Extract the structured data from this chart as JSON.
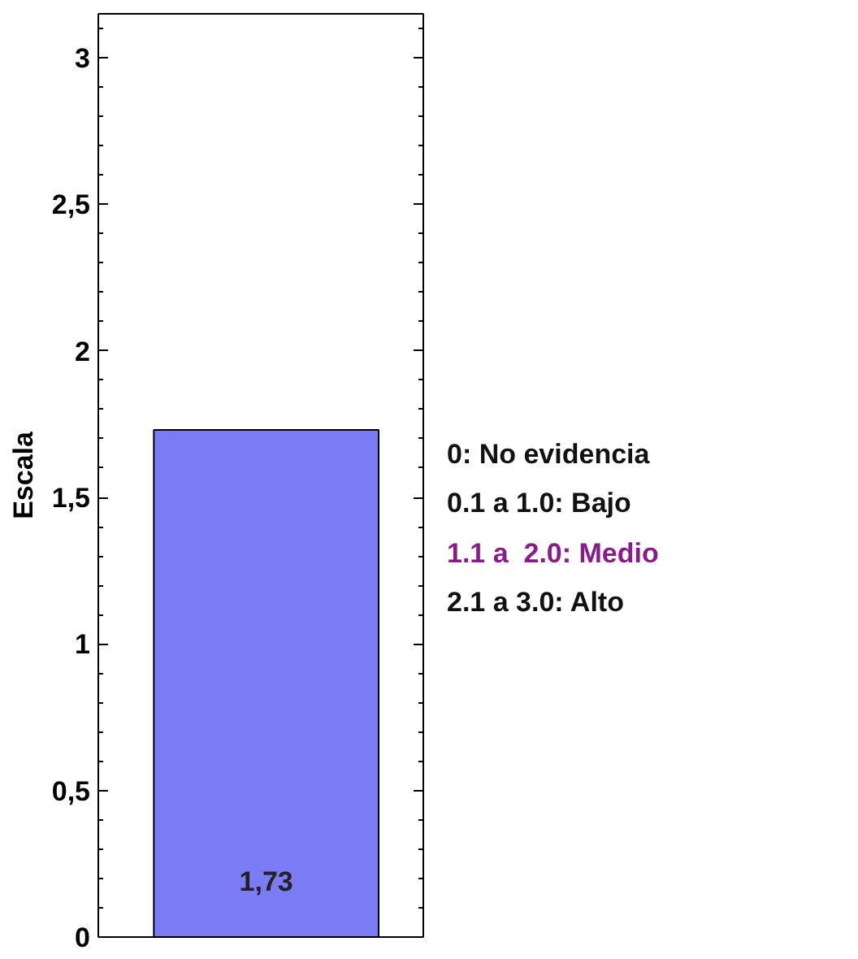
{
  "chart_data": {
    "type": "bar",
    "categories": [
      null
    ],
    "ylabel": "Escala",
    "series": [
      {
        "color": "#7b7bf5",
        "values": [
          1.73
        ],
        "value_labels": [
          "1,73"
        ]
      }
    ],
    "ylim": [
      0,
      3.15
    ],
    "yticks": [
      0,
      {
        "value": 0.5,
        "label": "0,5"
      },
      1,
      {
        "value": 1.5,
        "label": "1,5"
      },
      2,
      {
        "value": 2.5,
        "label": "2,5"
      },
      3
    ],
    "tick_labels": "y",
    "grid": false,
    "annotations": [
      "0: No evidencia",
      "0.1 a 1.0: Bajo",
      "1.1 a  2.0: Medio",
      "2.1 a 3.0: Alto"
    ]
  }
}
